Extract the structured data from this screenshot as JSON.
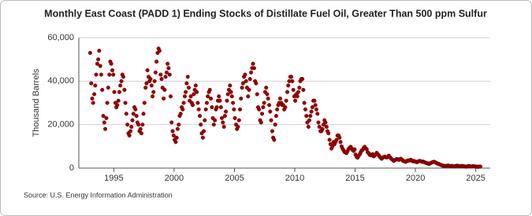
{
  "chart_data": {
    "type": "scatter",
    "title": "Monthly East Coast (PADD 1) Ending Stocks of Distillate Fuel Oil, Greater Than 500 ppm Sulfur",
    "y_label": "Thousand Barrels",
    "source": "Source: U.S. Energy Information Administration",
    "color": "#990000",
    "grid": true,
    "xlim": [
      1992.1,
      2026.2
    ],
    "ylim": [
      0,
      60000
    ],
    "xticks": [
      1995,
      2000,
      2005,
      2010,
      2015,
      2020,
      2025
    ],
    "yticks": [
      0,
      {
        "value": 20000,
        "label": "20,000"
      },
      {
        "value": 40000,
        "label": "40,000"
      },
      {
        "value": 60000,
        "label": "60,000"
      }
    ],
    "x": [
      1993.04,
      1993.13,
      1993.21,
      1993.29,
      1993.38,
      1993.46,
      1993.54,
      1993.63,
      1993.71,
      1993.79,
      1993.88,
      1993.96,
      1994.04,
      1994.13,
      1994.21,
      1994.29,
      1994.38,
      1994.46,
      1994.54,
      1994.63,
      1994.71,
      1994.79,
      1994.88,
      1994.96,
      1995.04,
      1995.13,
      1995.21,
      1995.29,
      1995.38,
      1995.46,
      1995.54,
      1995.63,
      1995.71,
      1995.79,
      1995.88,
      1995.96,
      1996.04,
      1996.13,
      1996.21,
      1996.29,
      1996.38,
      1996.46,
      1996.54,
      1996.63,
      1996.71,
      1996.79,
      1996.88,
      1996.96,
      1997.04,
      1997.13,
      1997.21,
      1997.29,
      1997.38,
      1997.46,
      1997.54,
      1997.63,
      1997.71,
      1997.79,
      1997.88,
      1997.96,
      1998.04,
      1998.13,
      1998.21,
      1998.29,
      1998.38,
      1998.46,
      1998.54,
      1998.63,
      1998.71,
      1998.79,
      1998.88,
      1998.96,
      1999.04,
      1999.13,
      1999.21,
      1999.29,
      1999.38,
      1999.46,
      1999.54,
      1999.63,
      1999.71,
      1999.79,
      1999.88,
      1999.96,
      2000.04,
      2000.13,
      2000.21,
      2000.29,
      2000.38,
      2000.46,
      2000.54,
      2000.63,
      2000.71,
      2000.79,
      2000.88,
      2000.96,
      2001.04,
      2001.13,
      2001.21,
      2001.29,
      2001.38,
      2001.46,
      2001.54,
      2001.63,
      2001.71,
      2001.79,
      2001.88,
      2001.96,
      2002.04,
      2002.13,
      2002.21,
      2002.29,
      2002.38,
      2002.46,
      2002.54,
      2002.63,
      2002.71,
      2002.79,
      2002.88,
      2002.96,
      2003.04,
      2003.13,
      2003.21,
      2003.29,
      2003.38,
      2003.46,
      2003.54,
      2003.63,
      2003.71,
      2003.79,
      2003.88,
      2003.96,
      2004.04,
      2004.13,
      2004.21,
      2004.29,
      2004.38,
      2004.46,
      2004.54,
      2004.63,
      2004.71,
      2004.79,
      2004.88,
      2004.96,
      2005.04,
      2005.13,
      2005.21,
      2005.29,
      2005.38,
      2005.46,
      2005.54,
      2005.63,
      2005.71,
      2005.79,
      2005.88,
      2005.96,
      2006.04,
      2006.13,
      2006.21,
      2006.29,
      2006.38,
      2006.46,
      2006.54,
      2006.63,
      2006.71,
      2006.79,
      2006.88,
      2006.96,
      2007.04,
      2007.13,
      2007.21,
      2007.29,
      2007.38,
      2007.46,
      2007.54,
      2007.63,
      2007.71,
      2007.79,
      2007.88,
      2007.96,
      2008.04,
      2008.13,
      2008.21,
      2008.29,
      2008.38,
      2008.46,
      2008.54,
      2008.63,
      2008.71,
      2008.79,
      2008.88,
      2008.96,
      2009.04,
      2009.13,
      2009.21,
      2009.29,
      2009.38,
      2009.46,
      2009.54,
      2009.63,
      2009.71,
      2009.79,
      2009.88,
      2009.96,
      2010.04,
      2010.13,
      2010.21,
      2010.29,
      2010.38,
      2010.46,
      2010.54,
      2010.63,
      2010.71,
      2010.79,
      2010.88,
      2010.96,
      2011.04,
      2011.13,
      2011.21,
      2011.29,
      2011.38,
      2011.46,
      2011.54,
      2011.63,
      2011.71,
      2011.79,
      2011.88,
      2011.96,
      2012.04,
      2012.13,
      2012.21,
      2012.29,
      2012.38,
      2012.46,
      2012.54,
      2012.63,
      2012.71,
      2012.79,
      2012.88,
      2012.96,
      2013.04,
      2013.13,
      2013.21,
      2013.29,
      2013.38,
      2013.46,
      2013.54,
      2013.63,
      2013.71,
      2013.79,
      2013.88,
      2013.96,
      2014.04,
      2014.13,
      2014.21,
      2014.29,
      2014.38,
      2014.46,
      2014.54,
      2014.63,
      2014.71,
      2014.79,
      2014.88,
      2014.96,
      2015.04,
      2015.13,
      2015.21,
      2015.29,
      2015.38,
      2015.46,
      2015.54,
      2015.63,
      2015.71,
      2015.79,
      2015.88,
      2015.96,
      2016.04,
      2016.13,
      2016.21,
      2016.29,
      2016.38,
      2016.46,
      2016.54,
      2016.63,
      2016.71,
      2016.79,
      2016.88,
      2016.96,
      2017.04,
      2017.13,
      2017.21,
      2017.29,
      2017.38,
      2017.46,
      2017.54,
      2017.63,
      2017.71,
      2017.79,
      2017.88,
      2017.96,
      2018.04,
      2018.13,
      2018.21,
      2018.29,
      2018.38,
      2018.46,
      2018.54,
      2018.63,
      2018.71,
      2018.79,
      2018.88,
      2018.96,
      2019.04,
      2019.13,
      2019.21,
      2019.29,
      2019.38,
      2019.46,
      2019.54,
      2019.63,
      2019.71,
      2019.79,
      2019.88,
      2019.96,
      2020.04,
      2020.13,
      2020.21,
      2020.29,
      2020.38,
      2020.46,
      2020.54,
      2020.63,
      2020.71,
      2020.79,
      2020.88,
      2020.96,
      2021.04,
      2021.13,
      2021.21,
      2021.29,
      2021.38,
      2021.46,
      2021.54,
      2021.63,
      2021.71,
      2021.79,
      2021.88,
      2021.96,
      2022.04,
      2022.13,
      2022.21,
      2022.29,
      2022.38,
      2022.46,
      2022.54,
      2022.63,
      2022.71,
      2022.79,
      2022.88,
      2022.96,
      2023.04,
      2023.13,
      2023.21,
      2023.29,
      2023.38,
      2023.46,
      2023.54,
      2023.63,
      2023.71,
      2023.79,
      2023.88,
      2023.96,
      2024.04,
      2024.13,
      2024.21,
      2024.29,
      2024.38,
      2024.46,
      2024.54,
      2024.63,
      2024.71,
      2024.79,
      2024.88,
      2024.96,
      2025.04,
      2025.13,
      2025.21,
      2025.29,
      2025.38
    ],
    "values": [
      53000,
      39000,
      32000,
      30000,
      34000,
      38000,
      43000,
      48000,
      50000,
      54000,
      47000,
      43000,
      36000,
      24000,
      21000,
      18000,
      23000,
      30000,
      37000,
      43000,
      49000,
      48000,
      45000,
      43000,
      35000,
      30000,
      28000,
      29000,
      31000,
      35000,
      38000,
      40000,
      43000,
      42000,
      36000,
      30000,
      25000,
      20000,
      16000,
      15000,
      17000,
      19000,
      22000,
      25000,
      28000,
      27000,
      24000,
      21000,
      20000,
      17000,
      18000,
      16000,
      20000,
      25000,
      30000,
      37000,
      39000,
      45000,
      42000,
      40000,
      41000,
      38000,
      33000,
      35000,
      40000,
      44000,
      49000,
      53000,
      55000,
      54000,
      43000,
      41000,
      37000,
      32000,
      36000,
      42000,
      44000,
      48000,
      46000,
      43000,
      33000,
      21000,
      17000,
      15000,
      13000,
      12000,
      14000,
      18000,
      20000,
      24000,
      25000,
      28000,
      27000,
      30000,
      33000,
      35000,
      39000,
      42000,
      37000,
      31000,
      33000,
      30000,
      29000,
      34000,
      36000,
      38000,
      35000,
      30000,
      27000,
      24000,
      20000,
      16000,
      14000,
      17000,
      22000,
      27000,
      30000,
      33000,
      35000,
      36000,
      32000,
      28000,
      23000,
      20000,
      22000,
      27000,
      28000,
      31000,
      33000,
      31000,
      28000,
      23000,
      21000,
      19000,
      24000,
      26000,
      31000,
      34000,
      36000,
      38000,
      35000,
      33000,
      30000,
      27000,
      23000,
      20000,
      18000,
      19000,
      22000,
      27000,
      32000,
      37000,
      39000,
      42000,
      43000,
      40000,
      37000,
      33000,
      36000,
      41000,
      44000,
      46000,
      48000,
      46000,
      40000,
      39000,
      34000,
      28000,
      27000,
      22000,
      21000,
      25000,
      28000,
      30000,
      35000,
      37000,
      34000,
      32000,
      29000,
      26000,
      22000,
      17000,
      14000,
      13000,
      20000,
      24000,
      27000,
      29000,
      30000,
      32000,
      30000,
      29000,
      29000,
      27000,
      28000,
      31000,
      35000,
      38000,
      40000,
      42000,
      42000,
      40000,
      36000,
      33000,
      31000,
      34000,
      33000,
      35000,
      37000,
      40000,
      41000,
      41000,
      36000,
      30000,
      27000,
      24000,
      21000,
      19000,
      22000,
      24000,
      26000,
      28000,
      31000,
      31000,
      29000,
      27000,
      25000,
      21000,
      19000,
      17000,
      17000,
      18000,
      20000,
      22000,
      21000,
      19000,
      17000,
      16000,
      13000,
      11000,
      9000,
      10000,
      12000,
      11000,
      12000,
      13000,
      15000,
      15000,
      14000,
      12000,
      10000,
      9000,
      8200,
      7400,
      7100,
      6900,
      7800,
      8800,
      9300,
      9800,
      9100,
      8300,
      7900,
      8600,
      6200,
      5100,
      4800,
      5600,
      6300,
      7200,
      8100,
      8400,
      9200,
      9800,
      9100,
      8700,
      7300,
      6800,
      6100,
      5900,
      6200,
      6400,
      5400,
      5800,
      6300,
      7000,
      6400,
      5900,
      5200,
      4700,
      4300,
      4800,
      5100,
      5300,
      5000,
      4900,
      5200,
      5700,
      5100,
      4600,
      4100,
      3700,
      3300,
      3600,
      3900,
      4200,
      4000,
      3800,
      4100,
      4300,
      3900,
      3400,
      3200,
      3000,
      2900,
      3300,
      3500,
      3400,
      3700,
      3800,
      3400,
      3100,
      3300,
      3000,
      2900,
      2700,
      3000,
      3200,
      3300,
      3100,
      2900,
      3000,
      2800,
      2600,
      2400,
      2300,
      2100,
      1900,
      2200,
      2400,
      2600,
      2800,
      2900,
      2700,
      2400,
      2200,
      2000,
      1900,
      1600,
      1400,
      1200,
      1100,
      1000,
      1000,
      900,
      1100,
      1200,
      1000,
      900,
      1000,
      900,
      800,
      800,
      900,
      1000,
      1100,
      1000,
      900,
      800,
      900,
      1000,
      900,
      800,
      700,
      700,
      800,
      900,
      900,
      800,
      700,
      800,
      900,
      800,
      700,
      700,
      600,
      600,
      700,
      700
    ]
  }
}
